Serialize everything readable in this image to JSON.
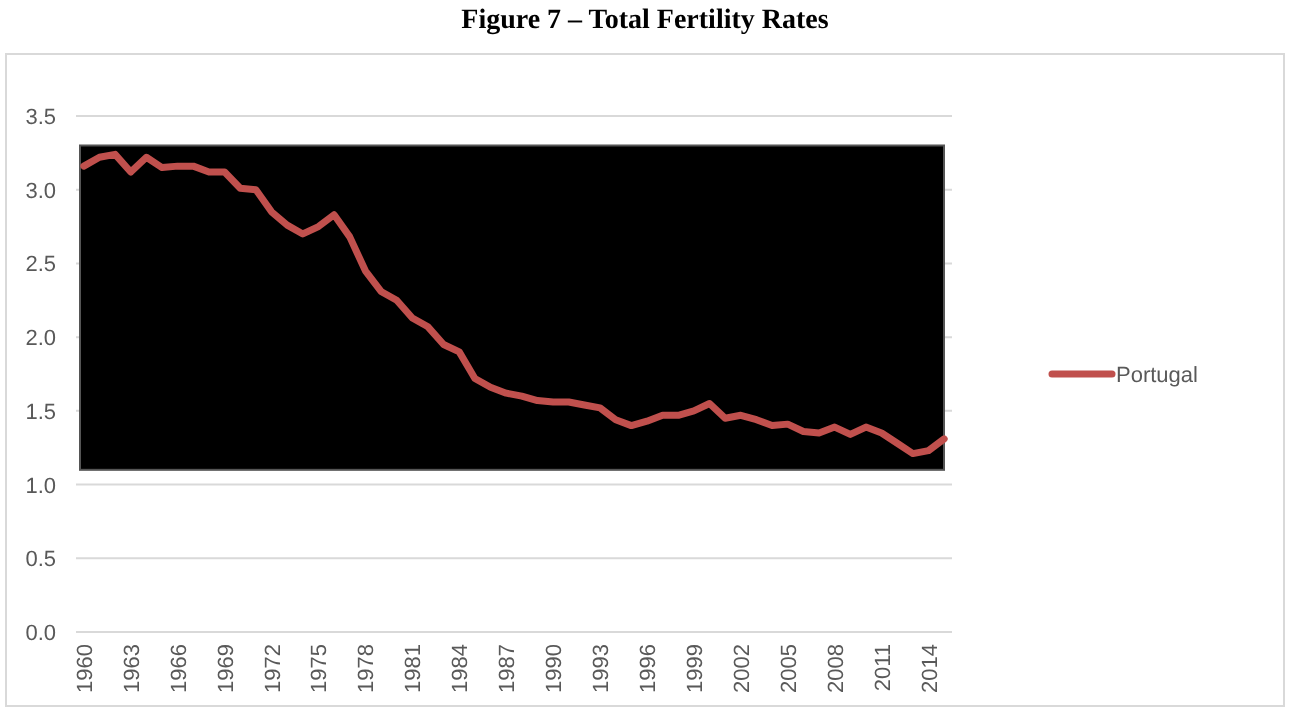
{
  "chart_data": {
    "type": "line",
    "title": "Figure 7 – Total Fertility Rates",
    "categories": [
      "1960",
      null,
      null,
      "1963",
      null,
      null,
      "1966",
      null,
      null,
      "1969",
      null,
      null,
      "1972",
      null,
      null,
      "1975",
      null,
      null,
      "1978",
      null,
      null,
      "1981",
      null,
      null,
      "1984",
      null,
      null,
      "1987",
      null,
      null,
      "1990",
      null,
      null,
      "1993",
      null,
      null,
      "1996",
      null,
      null,
      "1999",
      null,
      null,
      "2002",
      null,
      null,
      "2005",
      null,
      null,
      "2008",
      null,
      null,
      "2011",
      null,
      null,
      "2014",
      null
    ],
    "series": [
      {
        "name": "Portugal",
        "color": "#c0504d",
        "values": [
          3.16,
          3.22,
          3.24,
          3.12,
          3.22,
          3.15,
          3.16,
          3.16,
          3.12,
          3.12,
          3.01,
          3.0,
          2.85,
          2.76,
          2.7,
          2.75,
          2.83,
          2.68,
          2.45,
          2.31,
          2.25,
          2.13,
          2.07,
          1.95,
          1.9,
          1.72,
          1.66,
          1.62,
          1.6,
          1.57,
          1.56,
          1.56,
          1.54,
          1.52,
          1.44,
          1.4,
          1.43,
          1.47,
          1.47,
          1.5,
          1.55,
          1.45,
          1.47,
          1.44,
          1.4,
          1.41,
          1.36,
          1.35,
          1.39,
          1.34,
          1.39,
          1.35,
          1.28,
          1.21,
          1.23,
          1.31
        ]
      }
    ],
    "ylim": [
      0,
      3.5
    ],
    "yticks": [
      {
        "value": 0,
        "label": "0.0"
      },
      {
        "value": 0.5,
        "label": "0.5"
      },
      {
        "value": 1,
        "label": "1.0"
      },
      {
        "value": 1.5,
        "label": "1.5"
      },
      {
        "value": 2,
        "label": "2.0"
      },
      {
        "value": 2.5,
        "label": "2.5"
      },
      {
        "value": 3,
        "label": "3.0"
      },
      {
        "value": 3.5,
        "label": "3.5"
      }
    ],
    "grid": "y",
    "legend": "right",
    "line_style": "solid",
    "marker": "none"
  }
}
